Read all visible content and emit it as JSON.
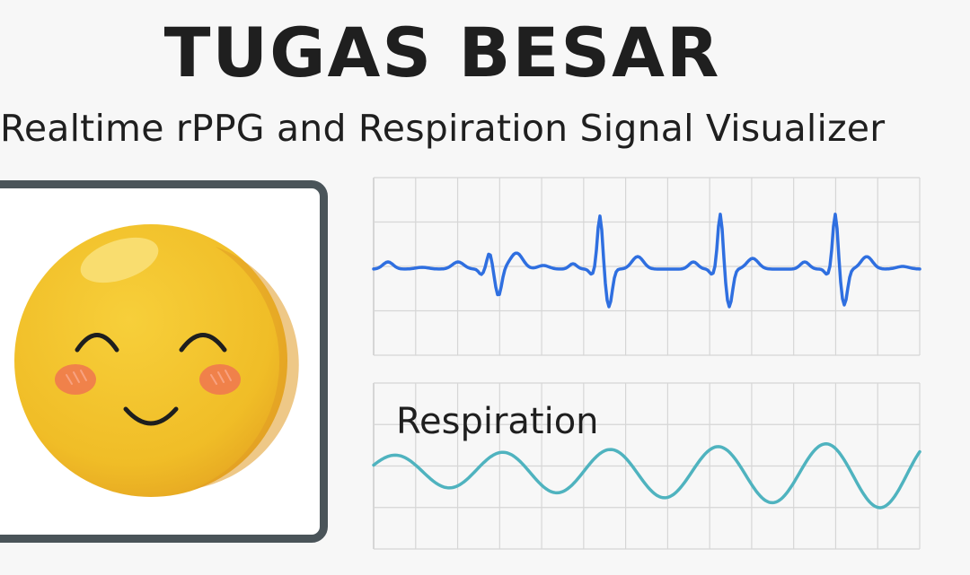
{
  "header": {
    "title": "TUGAS BESAR",
    "subtitle": "Realtime rPPG and Respiration Signal Visualizer"
  },
  "camera_preview": {
    "subject_icon": "smiling-face-icon"
  },
  "charts": {
    "rppg": {
      "line_color": "#2f6fe0",
      "grid_color": "#d6d6d6"
    },
    "respiration": {
      "label": "Respiration",
      "line_color": "#4fb3bf",
      "grid_color": "#d6d6d6"
    }
  },
  "colors": {
    "background": "#f7f7f7",
    "frame_border": "#4a5459",
    "face_fill": "#f1c12c",
    "face_shadow": "#e0a12a",
    "cheek": "#f07a4e"
  }
}
